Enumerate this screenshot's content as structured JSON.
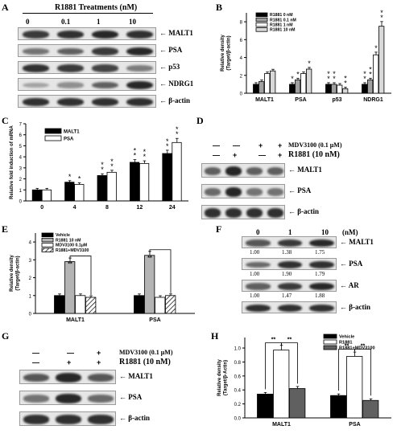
{
  "panels": {
    "A": "A",
    "B": "B",
    "C": "C",
    "D": "D",
    "E": "E",
    "F": "F",
    "G": "G",
    "H": "H"
  },
  "panel_a": {
    "title": "R1881 Treatments (nM)",
    "lanes": [
      "0",
      "0.1",
      "1",
      "10"
    ],
    "rows": [
      "MALT1",
      "PSA",
      "p53",
      "NDRG1",
      "β-actin"
    ],
    "intensity": [
      [
        0.75,
        0.8,
        0.85,
        0.8
      ],
      [
        0.45,
        0.55,
        0.75,
        0.85
      ],
      [
        0.8,
        0.75,
        0.7,
        0.4
      ],
      [
        0.2,
        0.3,
        0.55,
        0.85
      ],
      [
        0.8,
        0.8,
        0.8,
        0.8
      ]
    ]
  },
  "panel_d": {
    "rows_treat": [
      {
        "label": "MDV3100 (0.1 μM)",
        "signs": [
          "—",
          "—",
          "+",
          "+"
        ]
      },
      {
        "label": "R1881 (10 nM)",
        "signs": [
          "—",
          "+",
          "—",
          "+"
        ]
      }
    ],
    "rows": [
      "MALT1",
      "PSA",
      "β-actin"
    ],
    "intensity": [
      [
        0.55,
        0.85,
        0.55,
        0.55
      ],
      [
        0.5,
        0.85,
        0.45,
        0.45
      ],
      [
        0.8,
        0.8,
        0.8,
        0.8
      ]
    ]
  },
  "panel_f": {
    "lanes": [
      "0",
      "1",
      "10"
    ],
    "unit": "(nM)",
    "rows": [
      "MALT1",
      "PSA",
      "AR",
      "β-actin"
    ],
    "quant": [
      [
        "1.00",
        "1.38",
        "1.75"
      ],
      [
        "1.00",
        "1.90",
        "1.79"
      ],
      [
        "1.00",
        "1.47",
        "1.88"
      ]
    ],
    "intensity": [
      [
        0.6,
        0.75,
        0.85
      ],
      [
        0.5,
        0.8,
        0.8
      ],
      [
        0.55,
        0.75,
        0.85
      ],
      [
        0.8,
        0.8,
        0.8
      ]
    ]
  },
  "panel_g": {
    "rows_treat": [
      {
        "label": "MDV3100 (0.1 μM)",
        "signs": [
          "—",
          "—",
          "+"
        ]
      },
      {
        "label": "R1881 (10 nM)",
        "signs": [
          "—",
          "+",
          "+"
        ]
      }
    ],
    "rows": [
      "MALT1",
      "PSA",
      "β-actin"
    ],
    "intensity": [
      [
        0.6,
        0.85,
        0.6
      ],
      [
        0.45,
        0.85,
        0.5
      ],
      [
        0.8,
        0.8,
        0.8
      ]
    ]
  },
  "chart_data": [
    {
      "panel": "B",
      "type": "bar",
      "categories": [
        "MALT1",
        "PSA",
        "p53",
        "NDRG1"
      ],
      "ylabel": "Relative density\n(Target/β-actin)",
      "ylim": [
        0,
        9
      ],
      "yticks": [
        "0",
        "2",
        "4",
        "6",
        "8"
      ],
      "series": [
        {
          "name": "R1881 0 nM",
          "color": "#000000",
          "values": [
            1.0,
            1.0,
            1.0,
            1.0
          ]
        },
        {
          "name": "R1881 0.1 nM",
          "color": "#a0a0a0",
          "values": [
            1.3,
            1.5,
            1.0,
            1.5
          ]
        },
        {
          "name": "R1881 1 nM",
          "color": "#ffffff",
          "values": [
            2.2,
            2.2,
            0.9,
            4.3
          ]
        },
        {
          "name": "R1881 10 nM",
          "color": "#d8d8d8",
          "values": [
            2.5,
            2.7,
            0.5,
            7.5
          ]
        }
      ],
      "stars": [
        [
          "",
          "*",
          "**",
          "**"
        ],
        [
          "",
          "*",
          "**",
          "**"
        ],
        [
          "",
          "",
          "",
          "*"
        ],
        [
          "",
          "*",
          "**",
          "**"
        ]
      ]
    },
    {
      "panel": "C",
      "type": "bar",
      "categories": [
        "0",
        "4",
        "8",
        "12",
        "24"
      ],
      "ylabel": "Relative fold induction of mRNA",
      "ylim": [
        0,
        7
      ],
      "yticks": [
        "0",
        "1",
        "2",
        "3",
        "4",
        "5",
        "6",
        "7"
      ],
      "series": [
        {
          "name": "MALT1",
          "color": "#000000",
          "values": [
            1.0,
            1.7,
            2.3,
            3.5,
            4.3
          ]
        },
        {
          "name": "PSA",
          "color": "#ffffff",
          "values": [
            1.0,
            1.5,
            2.6,
            3.4,
            5.3
          ]
        }
      ],
      "stars": [
        [
          "",
          "*",
          "**",
          "**",
          "**"
        ],
        [
          "",
          "*",
          "**",
          "**",
          "**"
        ]
      ]
    },
    {
      "panel": "E",
      "type": "bar",
      "categories": [
        "MALT1",
        "PSA"
      ],
      "ylabel": "Relative density\n(Target/β-actin)",
      "ylim": [
        0,
        4.5
      ],
      "yticks": [
        "0",
        "1",
        "2",
        "3",
        "4"
      ],
      "series": [
        {
          "name": "Vehicle",
          "color": "#000000",
          "values": [
            1.0,
            1.0
          ]
        },
        {
          "name": "R1881 10 nM",
          "color": "#b4b4b4",
          "values": [
            2.9,
            3.25
          ]
        },
        {
          "name": "MDV3100 0.1μM",
          "color": "#ffffff",
          "values": [
            1.0,
            0.9
          ]
        },
        {
          "name": "R1881+MDV3100",
          "color": "hatch",
          "values": [
            0.9,
            1.0
          ]
        }
      ],
      "sig": "**"
    },
    {
      "panel": "H",
      "type": "bar",
      "categories": [
        "MALT1",
        "PSA"
      ],
      "ylabel": "Relative density\n(Target/β-Actin)",
      "ylim": [
        0,
        1.15
      ],
      "yticks": [
        "0.0",
        "0.2",
        "0.4",
        "0.6",
        "0.8",
        "1.0"
      ],
      "series": [
        {
          "name": "Vehicle",
          "color": "#000000",
          "values": [
            0.34,
            0.32
          ]
        },
        {
          "name": "R1881",
          "color": "#ffffff",
          "values": [
            0.97,
            0.88
          ]
        },
        {
          "name": "R1881+MDV3100",
          "color": "#606060",
          "values": [
            0.42,
            0.25
          ]
        }
      ],
      "sig": "**"
    }
  ]
}
